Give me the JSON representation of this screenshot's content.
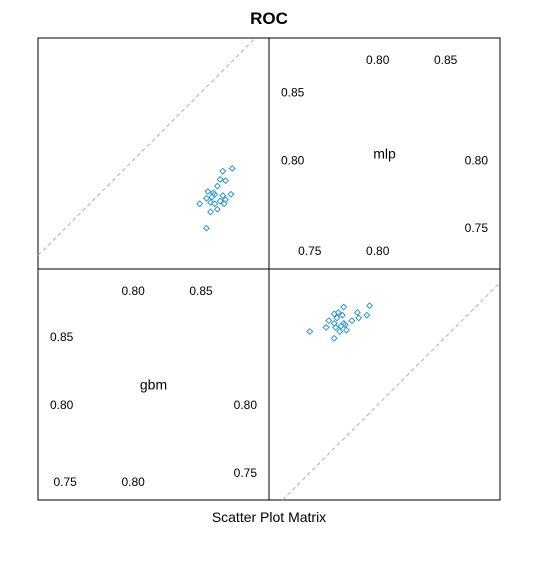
{
  "chart_data": {
    "type": "scatter",
    "title": "ROC",
    "xlabel": "Scatter Plot Matrix",
    "variables": [
      {
        "name": "gbm",
        "range": [
          0.73,
          0.9
        ],
        "ticks_lower": [
          "0.75",
          "0.80"
        ],
        "ticks_upper": [
          "0.80",
          "0.85"
        ],
        "tick_values_lower": [
          0.75,
          0.8
        ],
        "tick_values_upper": [
          0.8,
          0.85
        ]
      },
      {
        "name": "mlp",
        "range": [
          0.72,
          0.89
        ],
        "ticks_lower": [
          "0.75",
          "0.80"
        ],
        "ticks_upper": [
          "0.80",
          "0.85"
        ],
        "tick_values_lower": [
          0.75,
          0.8
        ],
        "tick_values_upper": [
          0.8,
          0.85
        ]
      }
    ],
    "reference_line": "y = x",
    "colors": {
      "points": "#1f8fd0",
      "reference": "#b0b0b0",
      "frame": "#000000"
    },
    "points": [
      {
        "gbm": 0.873,
        "mlp": 0.794
      },
      {
        "gbm": 0.866,
        "mlp": 0.792
      },
      {
        "gbm": 0.864,
        "mlp": 0.786
      },
      {
        "gbm": 0.868,
        "mlp": 0.785
      },
      {
        "gbm": 0.862,
        "mlp": 0.781
      },
      {
        "gbm": 0.855,
        "mlp": 0.777
      },
      {
        "gbm": 0.859,
        "mlp": 0.776
      },
      {
        "gbm": 0.86,
        "mlp": 0.775
      },
      {
        "gbm": 0.858,
        "mlp": 0.773
      },
      {
        "gbm": 0.854,
        "mlp": 0.772
      },
      {
        "gbm": 0.866,
        "mlp": 0.774
      },
      {
        "gbm": 0.864,
        "mlp": 0.77
      },
      {
        "gbm": 0.872,
        "mlp": 0.775
      },
      {
        "gbm": 0.868,
        "mlp": 0.771
      },
      {
        "gbm": 0.857,
        "mlp": 0.769
      },
      {
        "gbm": 0.86,
        "mlp": 0.768
      },
      {
        "gbm": 0.849,
        "mlp": 0.768
      },
      {
        "gbm": 0.867,
        "mlp": 0.768
      },
      {
        "gbm": 0.862,
        "mlp": 0.764
      },
      {
        "gbm": 0.857,
        "mlp": 0.762
      },
      {
        "gbm": 0.854,
        "mlp": 0.75
      }
    ]
  }
}
